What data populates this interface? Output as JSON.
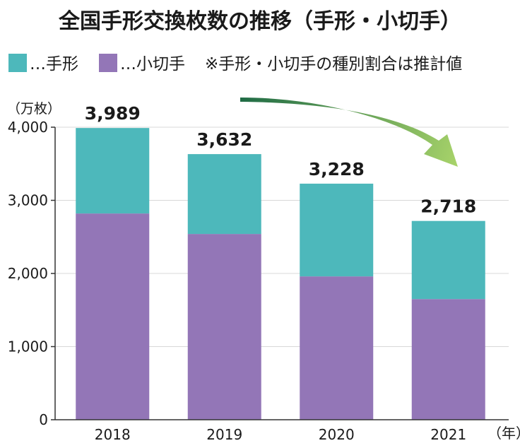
{
  "chart_data": {
    "type": "bar",
    "stacked": true,
    "title": "全国手形交換枚数の推移（手形・小切手）",
    "ylabel": "（万枚）",
    "xlabel": "（年）",
    "ylim": [
      0,
      4000
    ],
    "yticks": [
      "0",
      "1,000",
      "2,000",
      "3,000",
      "4,000"
    ],
    "ytick_values": [
      0,
      1000,
      2000,
      3000,
      4000
    ],
    "categories": [
      "2018",
      "2019",
      "2020",
      "2021"
    ],
    "totals": [
      3989,
      3632,
      3228,
      2718
    ],
    "total_labels": [
      "3,989",
      "3,632",
      "3,228",
      "2,718"
    ],
    "series": [
      {
        "name": "小切手",
        "color": "#9376b7",
        "values": [
          2820,
          2540,
          1960,
          1650
        ]
      },
      {
        "name": "手形",
        "color": "#4db8bb",
        "values": [
          1169,
          1092,
          1268,
          1068
        ]
      }
    ],
    "legend": {
      "items": [
        {
          "label": "…手形",
          "color": "#4db8bb"
        },
        {
          "label": "…小切手",
          "color": "#9376b7"
        }
      ],
      "note": "※手形・小切手の種別割合は推計値"
    },
    "annotation": {
      "type": "trend-arrow",
      "direction": "down",
      "color_start": "#1f6b45",
      "color_end": "#a9d46a"
    }
  }
}
